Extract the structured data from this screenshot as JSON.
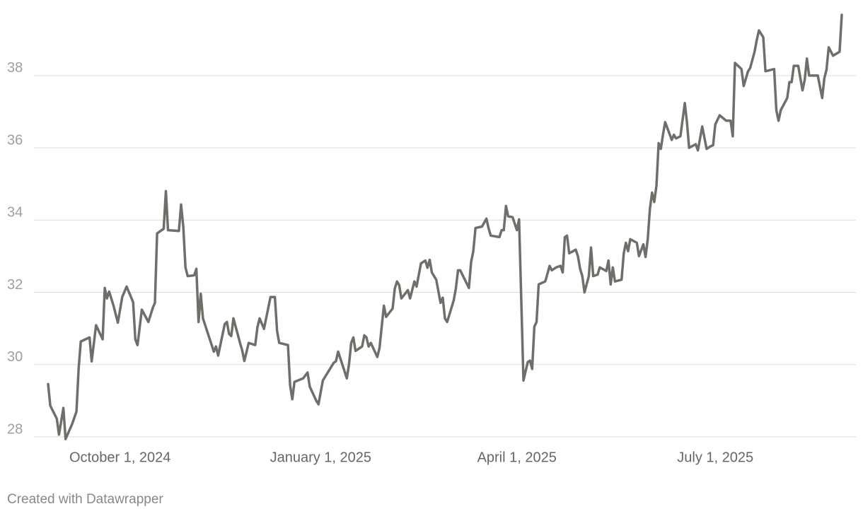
{
  "chart_data": {
    "type": "line",
    "credit": "Created with Datawrapper",
    "color": "#6f6f6a",
    "grid": true,
    "xlim": [
      "2024-08-29",
      "2025-08-28"
    ],
    "xticks": [
      {
        "value": "2024-10-01",
        "label": "October 1, 2024"
      },
      {
        "value": "2025-01-01",
        "label": "January 1, 2025"
      },
      {
        "value": "2025-04-01",
        "label": "April 1, 2025"
      },
      {
        "value": "2025-07-01",
        "label": "July 1, 2025"
      }
    ],
    "ylim": [
      28,
      39.7
    ],
    "yticks": [
      28,
      30,
      32,
      34,
      36,
      38
    ],
    "x": [
      "2024-08-29",
      "2024-08-30",
      "2024-09-02",
      "2024-09-03",
      "2024-09-05",
      "2024-09-06",
      "2024-09-09",
      "2024-09-11",
      "2024-09-12",
      "2024-09-13",
      "2024-09-17",
      "2024-09-18",
      "2024-09-20",
      "2024-09-23",
      "2024-09-24",
      "2024-09-25",
      "2024-09-26",
      "2024-09-28",
      "2024-09-30",
      "2024-10-02",
      "2024-10-04",
      "2024-10-07",
      "2024-10-08",
      "2024-10-09",
      "2024-10-11",
      "2024-10-14",
      "2024-10-16",
      "2024-10-17",
      "2024-10-18",
      "2024-10-21",
      "2024-10-22",
      "2024-10-23",
      "2024-10-28",
      "2024-10-29",
      "2024-10-30",
      "2024-10-31",
      "2024-11-01",
      "2024-11-04",
      "2024-11-05",
      "2024-11-06",
      "2024-11-07",
      "2024-11-08",
      "2024-11-11",
      "2024-11-13",
      "2024-11-14",
      "2024-11-15",
      "2024-11-18",
      "2024-11-19",
      "2024-11-20",
      "2024-11-21",
      "2024-11-22",
      "2024-11-25",
      "2024-11-26",
      "2024-11-27",
      "2024-11-29",
      "2024-12-02",
      "2024-12-03",
      "2024-12-04",
      "2024-12-06",
      "2024-12-09",
      "2024-12-11",
      "2024-12-12",
      "2024-12-13",
      "2024-12-17",
      "2024-12-18",
      "2024-12-19",
      "2024-12-20",
      "2024-12-24",
      "2024-12-26",
      "2024-12-27",
      "2024-12-30",
      "2024-12-31",
      "2025-01-02",
      "2025-01-07",
      "2025-01-08",
      "2025-01-09",
      "2025-01-13",
      "2025-01-14",
      "2025-01-15",
      "2025-01-16",
      "2025-01-17",
      "2025-01-20",
      "2025-01-21",
      "2025-01-22",
      "2025-01-23",
      "2025-01-24",
      "2025-01-27",
      "2025-01-28",
      "2025-01-30",
      "2025-01-31",
      "2025-02-03",
      "2025-02-04",
      "2025-02-05",
      "2025-02-06",
      "2025-02-07",
      "2025-02-10",
      "2025-02-11",
      "2025-02-13",
      "2025-02-14",
      "2025-02-16",
      "2025-02-18",
      "2025-02-19",
      "2025-02-20",
      "2025-02-21",
      "2025-02-23",
      "2025-02-25",
      "2025-02-26",
      "2025-02-27",
      "2025-02-28",
      "2025-03-03",
      "2025-03-04",
      "2025-03-05",
      "2025-03-06",
      "2025-03-10",
      "2025-03-11",
      "2025-03-12",
      "2025-03-13",
      "2025-03-16",
      "2025-03-18",
      "2025-03-19",
      "2025-03-20",
      "2025-03-24",
      "2025-03-25",
      "2025-03-26",
      "2025-03-27",
      "2025-03-28",
      "2025-03-30",
      "2025-04-01",
      "2025-04-02",
      "2025-04-04",
      "2025-04-06",
      "2025-04-07",
      "2025-04-08",
      "2025-04-09",
      "2025-04-10",
      "2025-04-11",
      "2025-04-14",
      "2025-04-16",
      "2025-04-17",
      "2025-04-19",
      "2025-04-21",
      "2025-04-22",
      "2025-04-23",
      "2025-04-24",
      "2025-04-25",
      "2025-04-28",
      "2025-04-29",
      "2025-04-30",
      "2025-05-01",
      "2025-05-02",
      "2025-05-04",
      "2025-05-05",
      "2025-05-06",
      "2025-05-08",
      "2025-05-09",
      "2025-05-12",
      "2025-05-13",
      "2025-05-14",
      "2025-05-15",
      "2025-05-16",
      "2025-05-19",
      "2025-05-20",
      "2025-05-21",
      "2025-05-22",
      "2025-05-23",
      "2025-05-26",
      "2025-05-27",
      "2025-05-29",
      "2025-05-30",
      "2025-05-31",
      "2025-06-01",
      "2025-06-02",
      "2025-06-03",
      "2025-06-04",
      "2025-06-05",
      "2025-06-06",
      "2025-06-07",
      "2025-06-08",
      "2025-06-09",
      "2025-06-11",
      "2025-06-12",
      "2025-06-13",
      "2025-06-15",
      "2025-06-17",
      "2025-06-18",
      "2025-06-19",
      "2025-06-22",
      "2025-06-23",
      "2025-06-25",
      "2025-06-27",
      "2025-06-29",
      "2025-06-30",
      "2025-07-01",
      "2025-07-03",
      "2025-07-06",
      "2025-07-08",
      "2025-07-09",
      "2025-07-10",
      "2025-07-13",
      "2025-07-14",
      "2025-07-16",
      "2025-07-17",
      "2025-07-19",
      "2025-07-20",
      "2025-07-21",
      "2025-07-23",
      "2025-07-24",
      "2025-07-28",
      "2025-07-29",
      "2025-07-30",
      "2025-07-31",
      "2025-08-03",
      "2025-08-04",
      "2025-08-05",
      "2025-08-06",
      "2025-08-08",
      "2025-08-10",
      "2025-08-11",
      "2025-08-12",
      "2025-08-13",
      "2025-08-17",
      "2025-08-19",
      "2025-08-20",
      "2025-08-21",
      "2025-08-22",
      "2025-08-24",
      "2025-08-27",
      "2025-08-28"
    ],
    "values": [
      29.46,
      28.86,
      28.5,
      28.06,
      28.8,
      27.94,
      28.35,
      28.7,
      29.9,
      30.64,
      30.75,
      30.09,
      31.09,
      30.7,
      32.12,
      31.83,
      32.02,
      31.63,
      31.16,
      31.87,
      32.16,
      31.73,
      30.7,
      30.54,
      31.52,
      31.18,
      31.57,
      31.71,
      33.63,
      33.76,
      34.8,
      33.72,
      33.7,
      34.43,
      33.82,
      32.69,
      32.45,
      32.47,
      32.65,
      31.18,
      31.96,
      31.28,
      30.73,
      30.36,
      30.5,
      30.25,
      31.12,
      31.18,
      30.85,
      30.79,
      31.28,
      30.6,
      30.4,
      30.1,
      30.6,
      30.54,
      31.03,
      31.28,
      30.99,
      31.87,
      31.87,
      30.93,
      30.6,
      30.54,
      29.43,
      29.04,
      29.52,
      29.62,
      29.78,
      29.39,
      29.0,
      28.9,
      29.56,
      30.05,
      30.09,
      30.36,
      29.62,
      30.01,
      30.6,
      30.75,
      30.38,
      30.5,
      30.81,
      30.75,
      30.5,
      30.6,
      30.21,
      30.46,
      31.63,
      31.32,
      31.55,
      32.1,
      32.3,
      32.2,
      31.83,
      32.06,
      31.83,
      32.3,
      32.16,
      32.8,
      32.88,
      32.68,
      32.9,
      32.55,
      32.35,
      31.71,
      31.85,
      31.28,
      31.18,
      31.77,
      32.1,
      32.61,
      32.61,
      32.12,
      32.84,
      33.14,
      33.78,
      33.82,
      34.04,
      33.78,
      33.57,
      33.53,
      33.72,
      33.72,
      34.39,
      34.1,
      34.08,
      33.72,
      34.02,
      29.56,
      30.07,
      30.11,
      29.88,
      31.05,
      31.18,
      32.22,
      32.3,
      32.73,
      32.61,
      32.69,
      32.73,
      32.55,
      33.53,
      33.57,
      33.08,
      33.18,
      33.0,
      32.65,
      32.45,
      32.0,
      32.45,
      33.24,
      32.45,
      32.49,
      32.69,
      32.59,
      32.88,
      32.22,
      32.69,
      32.3,
      32.35,
      33.08,
      33.37,
      33.14,
      33.47,
      33.37,
      33.0,
      33.33,
      32.98,
      33.47,
      34.3,
      34.76,
      34.5,
      34.95,
      36.13,
      35.97,
      36.36,
      36.71,
      36.55,
      36.22,
      36.36,
      36.26,
      36.32,
      37.24,
      36.71,
      36.0,
      36.1,
      35.93,
      36.59,
      35.97,
      36.05,
      36.07,
      36.65,
      36.9,
      36.75,
      36.75,
      36.32,
      38.35,
      38.18,
      37.71,
      38.12,
      38.21,
      38.66,
      38.98,
      39.25,
      39.06,
      38.12,
      38.18,
      37.04,
      36.75,
      37.04,
      37.38,
      37.82,
      37.82,
      38.27,
      38.27,
      37.59,
      37.88,
      38.47,
      38.0,
      38.0,
      37.38,
      37.92,
      38.16,
      38.78,
      38.55,
      38.66,
      39.68
    ]
  }
}
